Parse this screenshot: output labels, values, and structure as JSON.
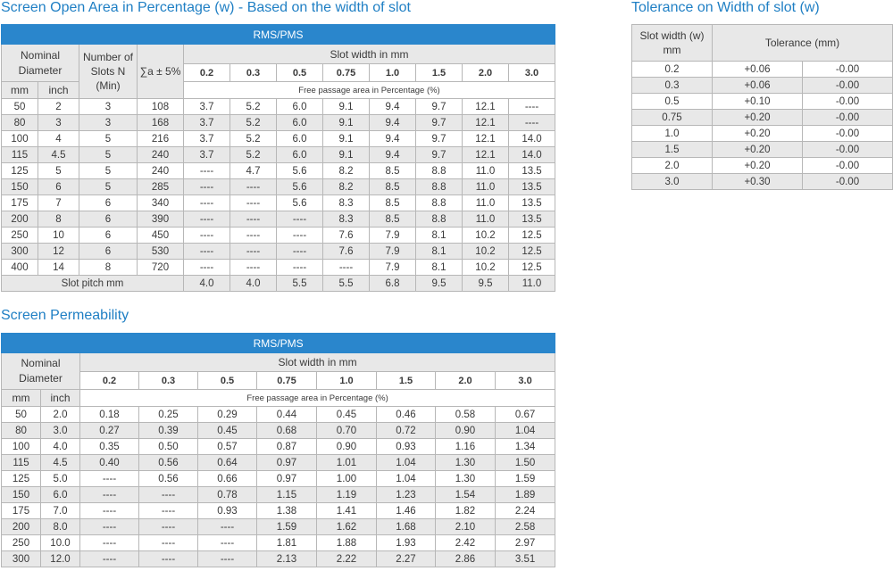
{
  "open_area": {
    "title": "Screen Open Area in Percentage (w) - Based on the width of slot",
    "band": "RMS/PMS",
    "nominal_diameter": "Nominal Diameter",
    "number_of_slots": "Number of Slots N (Min)",
    "sigma": "∑a ± 5%",
    "slot_width": "Slot width in mm",
    "mm": "mm",
    "inch": "inch",
    "free_passage": "Free passage area in Percentage (%)",
    "widths": [
      "0.2",
      "0.3",
      "0.5",
      "0.75",
      "1.0",
      "1.5",
      "2.0",
      "3.0"
    ],
    "rows": [
      [
        "50",
        "2",
        "3",
        "108",
        "3.7",
        "5.2",
        "6.0",
        "9.1",
        "9.4",
        "9.7",
        "12.1",
        "----"
      ],
      [
        "80",
        "3",
        "3",
        "168",
        "3.7",
        "5.2",
        "6.0",
        "9.1",
        "9.4",
        "9.7",
        "12.1",
        "----"
      ],
      [
        "100",
        "4",
        "5",
        "216",
        "3.7",
        "5.2",
        "6.0",
        "9.1",
        "9.4",
        "9.7",
        "12.1",
        "14.0"
      ],
      [
        "115",
        "4.5",
        "5",
        "240",
        "3.7",
        "5.2",
        "6.0",
        "9.1",
        "9.4",
        "9.7",
        "12.1",
        "14.0"
      ],
      [
        "125",
        "5",
        "5",
        "240",
        "----",
        "4.7",
        "5.6",
        "8.2",
        "8.5",
        "8.8",
        "11.0",
        "13.5"
      ],
      [
        "150",
        "6",
        "5",
        "285",
        "----",
        "----",
        "5.6",
        "8.2",
        "8.5",
        "8.8",
        "11.0",
        "13.5"
      ],
      [
        "175",
        "7",
        "6",
        "340",
        "----",
        "----",
        "5.6",
        "8.3",
        "8.5",
        "8.8",
        "11.0",
        "13.5"
      ],
      [
        "200",
        "8",
        "6",
        "390",
        "----",
        "----",
        "----",
        "8.3",
        "8.5",
        "8.8",
        "11.0",
        "13.5"
      ],
      [
        "250",
        "10",
        "6",
        "450",
        "----",
        "----",
        "----",
        "7.6",
        "7.9",
        "8.1",
        "10.2",
        "12.5"
      ],
      [
        "300",
        "12",
        "6",
        "530",
        "----",
        "----",
        "----",
        "7.6",
        "7.9",
        "8.1",
        "10.2",
        "12.5"
      ],
      [
        "400",
        "14",
        "8",
        "720",
        "----",
        "----",
        "----",
        "----",
        "7.9",
        "8.1",
        "10.2",
        "12.5"
      ]
    ],
    "pitch_label": "Slot pitch mm",
    "pitch": [
      "4.0",
      "4.0",
      "5.5",
      "5.5",
      "6.8",
      "9.5",
      "9.5",
      "11.0"
    ]
  },
  "tolerance": {
    "title": "Tolerance on Width of slot (w)",
    "col1": "Slot width (w) mm",
    "col2": "Tolerance (mm)",
    "rows": [
      [
        "0.2",
        "+0.06",
        "-0.00"
      ],
      [
        "0.3",
        "+0.06",
        "-0.00"
      ],
      [
        "0.5",
        "+0.10",
        "-0.00"
      ],
      [
        "0.75",
        "+0.20",
        "-0.00"
      ],
      [
        "1.0",
        "+0.20",
        "-0.00"
      ],
      [
        "1.5",
        "+0.20",
        "-0.00"
      ],
      [
        "2.0",
        "+0.20",
        "-0.00"
      ],
      [
        "3.0",
        "+0.30",
        "-0.00"
      ]
    ]
  },
  "permeability": {
    "title": "Screen Permeability",
    "band": "RMS/PMS",
    "nominal_diameter": "Nominal Diameter",
    "slot_width": "Slot width in mm",
    "mm": "mm",
    "inch": "inch",
    "free_passage": "Free passage area in Percentage (%)",
    "widths": [
      "0.2",
      "0.3",
      "0.5",
      "0.75",
      "1.0",
      "1.5",
      "2.0",
      "3.0"
    ],
    "rows": [
      [
        "50",
        "2.0",
        "0.18",
        "0.25",
        "0.29",
        "0.44",
        "0.45",
        "0.46",
        "0.58",
        "0.67"
      ],
      [
        "80",
        "3.0",
        "0.27",
        "0.39",
        "0.45",
        "0.68",
        "0.70",
        "0.72",
        "0.90",
        "1.04"
      ],
      [
        "100",
        "4.0",
        "0.35",
        "0.50",
        "0.57",
        "0.87",
        "0.90",
        "0.93",
        "1.16",
        "1.34"
      ],
      [
        "115",
        "4.5",
        "0.40",
        "0.56",
        "0.64",
        "0.97",
        "1.01",
        "1.04",
        "1.30",
        "1.50"
      ],
      [
        "125",
        "5.0",
        "----",
        "0.56",
        "0.66",
        "0.97",
        "1.00",
        "1.04",
        "1.30",
        "1.59"
      ],
      [
        "150",
        "6.0",
        "----",
        "----",
        "0.78",
        "1.15",
        "1.19",
        "1.23",
        "1.54",
        "1.89"
      ],
      [
        "175",
        "7.0",
        "----",
        "----",
        "0.93",
        "1.38",
        "1.41",
        "1.46",
        "1.82",
        "2.24"
      ],
      [
        "200",
        "8.0",
        "----",
        "----",
        "----",
        "1.59",
        "1.62",
        "1.68",
        "2.10",
        "2.58"
      ],
      [
        "250",
        "10.0",
        "----",
        "----",
        "----",
        "1.81",
        "1.88",
        "1.93",
        "2.42",
        "2.97"
      ],
      [
        "300",
        "12.0",
        "----",
        "----",
        "----",
        "2.13",
        "2.22",
        "2.27",
        "2.86",
        "3.51"
      ]
    ]
  }
}
